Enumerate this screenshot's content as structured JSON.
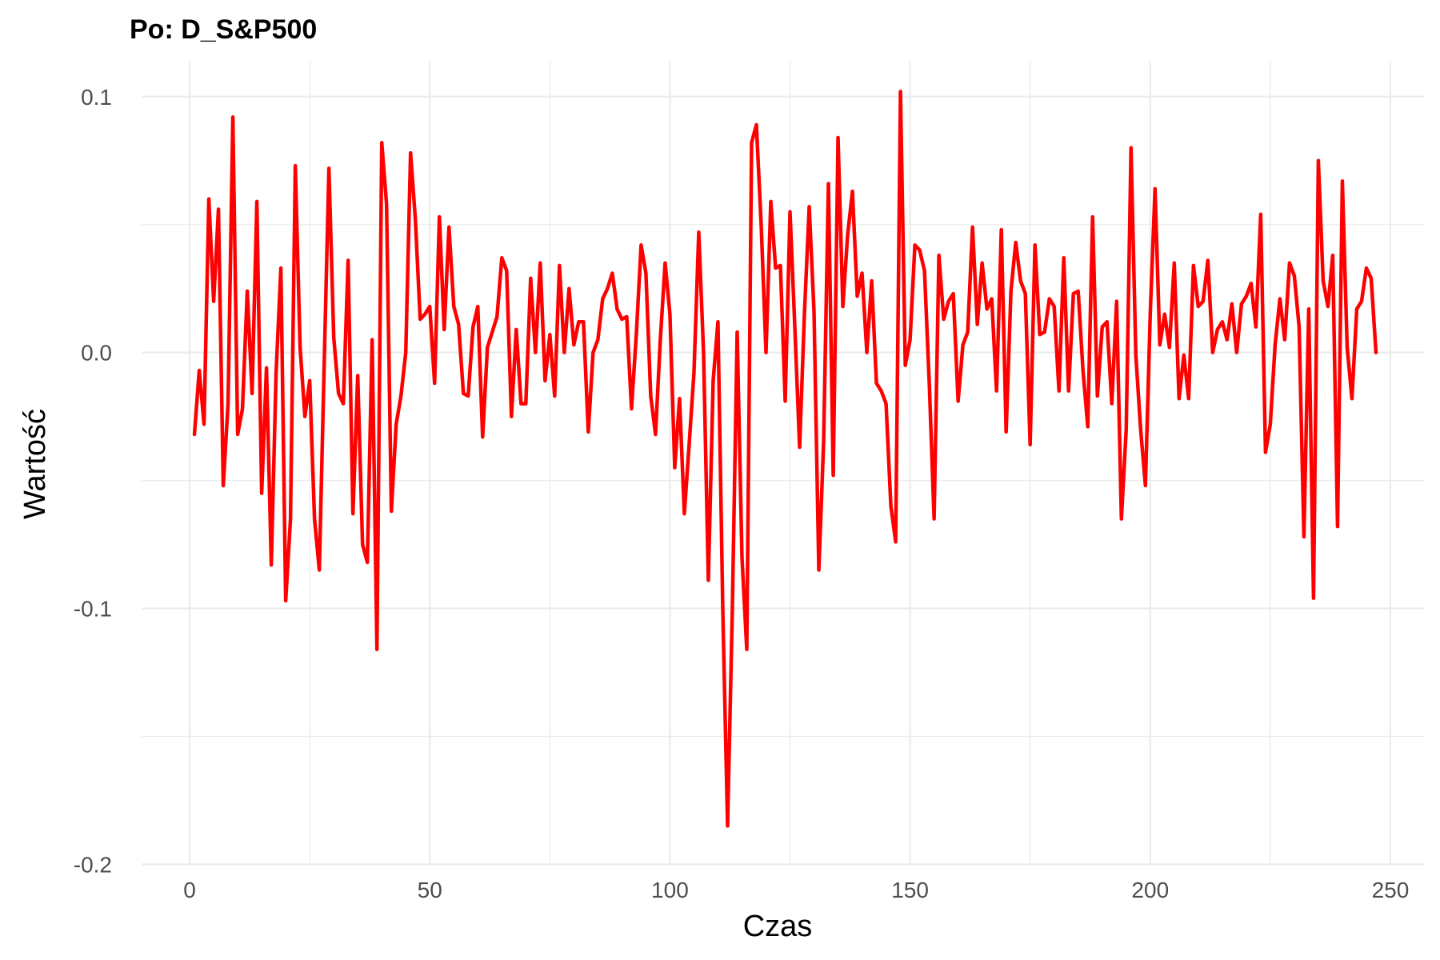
{
  "chart_data": {
    "type": "line",
    "title": "Po: D_S&P500",
    "xlabel": "Czas",
    "ylabel": "Wartość",
    "xlim": [
      -10,
      257
    ],
    "ylim": [
      -0.2,
      0.1
    ],
    "x_ticks": [
      0,
      50,
      100,
      150,
      200,
      250
    ],
    "x_tick_labels": [
      "0",
      "50",
      "100",
      "150",
      "200",
      "250"
    ],
    "y_ticks": [
      -0.2,
      -0.1,
      0.0,
      0.1
    ],
    "y_tick_labels": [
      "-0.2",
      "-0.1",
      "0.0",
      "0.1"
    ],
    "grid": true,
    "line_color": "#ff0000",
    "series": [
      {
        "x_start": 1,
        "values": [
          -0.032,
          -0.007,
          -0.028,
          0.06,
          0.02,
          0.056,
          -0.052,
          -0.02,
          0.092,
          -0.032,
          -0.022,
          0.024,
          -0.016,
          0.059,
          -0.055,
          -0.006,
          -0.083,
          -0.008,
          0.033,
          -0.097,
          -0.065,
          0.073,
          0.002,
          -0.025,
          -0.011,
          -0.065,
          -0.085,
          -0.006,
          0.072,
          0.006,
          -0.016,
          -0.02,
          0.036,
          -0.063,
          -0.009,
          -0.075,
          -0.082,
          0.005,
          -0.116,
          0.082,
          0.058,
          -0.062,
          -0.028,
          -0.017,
          0.0,
          0.078,
          0.052,
          0.013,
          0.015,
          0.018,
          -0.012,
          0.053,
          0.009,
          0.049,
          0.018,
          0.011,
          -0.016,
          -0.017,
          0.01,
          0.018,
          -0.033,
          0.002,
          0.008,
          0.014,
          0.037,
          0.032,
          -0.025,
          0.009,
          -0.02,
          -0.02,
          0.029,
          0.0,
          0.035,
          -0.011,
          0.007,
          -0.017,
          0.034,
          0.0,
          0.025,
          0.003,
          0.012,
          0.012,
          -0.031,
          0.0,
          0.005,
          0.021,
          0.025,
          0.031,
          0.017,
          0.013,
          0.014,
          -0.022,
          0.007,
          0.042,
          0.031,
          -0.017,
          -0.032,
          0.005,
          0.035,
          0.015,
          -0.045,
          -0.018,
          -0.063,
          -0.036,
          -0.008,
          0.047,
          0.0,
          -0.089,
          -0.011,
          0.012,
          -0.1,
          -0.185,
          -0.1,
          0.008,
          -0.08,
          -0.116,
          0.082,
          0.089,
          0.05,
          0.0,
          0.059,
          0.033,
          0.034,
          -0.019,
          0.055,
          0.01,
          -0.037,
          0.015,
          0.057,
          0.016,
          -0.085,
          -0.035,
          0.066,
          -0.048,
          0.084,
          0.018,
          0.046,
          0.063,
          0.022,
          0.031,
          0.0,
          0.028,
          -0.012,
          -0.015,
          -0.02,
          -0.06,
          -0.074,
          0.102,
          -0.005,
          0.005,
          0.042,
          0.04,
          0.032,
          -0.012,
          -0.065,
          0.038,
          0.013,
          0.02,
          0.023,
          -0.019,
          0.003,
          0.008,
          0.049,
          0.011,
          0.035,
          0.017,
          0.021,
          -0.015,
          0.048,
          -0.031,
          0.024,
          0.043,
          0.028,
          0.023,
          -0.036,
          0.042,
          0.007,
          0.008,
          0.021,
          0.018,
          -0.015,
          0.037,
          -0.015,
          0.023,
          0.024,
          -0.007,
          -0.029,
          0.053,
          -0.017,
          0.01,
          0.012,
          -0.02,
          0.02,
          -0.065,
          -0.03,
          0.08,
          -0.001,
          -0.03,
          -0.052,
          0.015,
          0.064,
          0.003,
          0.015,
          0.002,
          0.035,
          -0.018,
          -0.001,
          -0.018,
          0.034,
          0.018,
          0.02,
          0.036,
          0.0,
          0.009,
          0.012,
          0.005,
          0.019,
          0.0,
          0.019,
          0.022,
          0.027,
          0.01,
          0.054,
          -0.039,
          -0.028,
          0.003,
          0.021,
          0.005,
          0.035,
          0.03,
          0.01,
          -0.072,
          0.017,
          -0.096,
          0.075,
          0.028,
          0.018,
          0.038,
          -0.068,
          0.067,
          0.002,
          -0.018,
          0.017,
          0.02,
          0.033,
          0.029,
          0.0
        ]
      }
    ]
  }
}
